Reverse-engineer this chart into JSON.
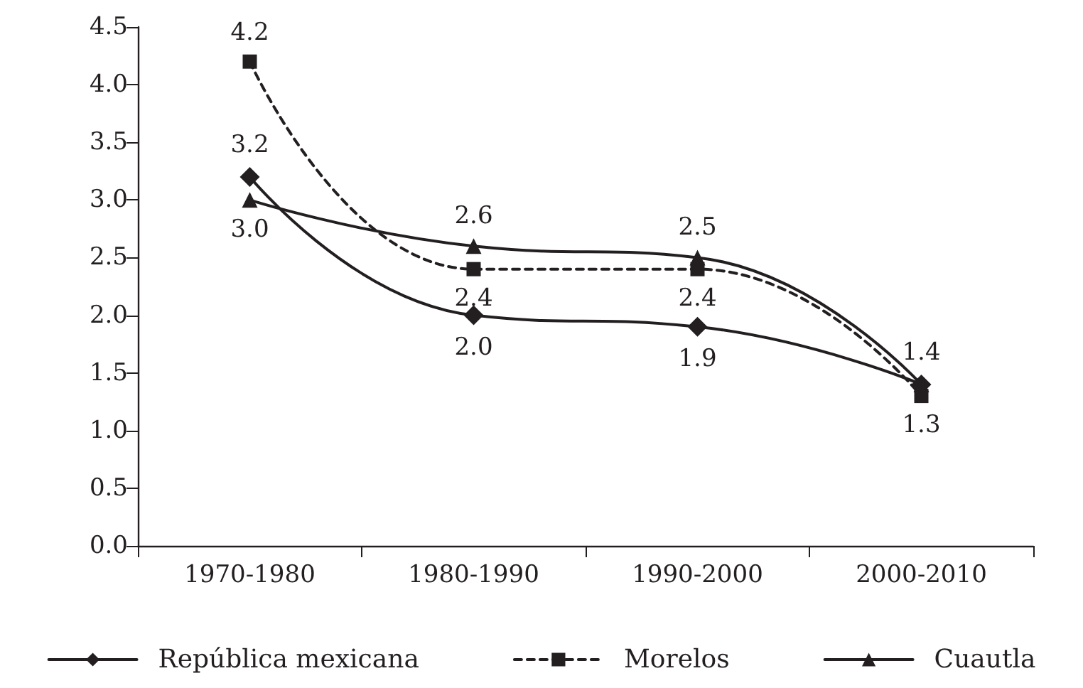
{
  "chart_data": {
    "type": "line",
    "categories": [
      "1970-1980",
      "1980-1990",
      "1990-2000",
      "2000-2010"
    ],
    "series": [
      {
        "name": "República mexicana",
        "color": "#231f20",
        "marker": "diamond",
        "line_style": "solid",
        "values": [
          3.2,
          2.0,
          1.9,
          1.4
        ],
        "value_labels": [
          "3.2",
          "2.0",
          "1.9",
          "1.4"
        ]
      },
      {
        "name": "Morelos",
        "color": "#231f20",
        "marker": "square",
        "line_style": "dashed",
        "values": [
          4.2,
          2.4,
          2.4,
          1.3
        ],
        "value_labels": [
          "4.2",
          "2.4",
          "2.4",
          "1.3"
        ]
      },
      {
        "name": "Cuautla",
        "color": "#231f20",
        "marker": "triangle",
        "line_style": "solid",
        "values": [
          3.0,
          2.6,
          2.5,
          1.4
        ],
        "value_labels": [
          "3.0",
          "2.6",
          "2.5",
          null
        ]
      }
    ],
    "ylim": [
      0,
      4.5
    ],
    "yticks": [
      {
        "value": 0,
        "label": "0.0"
      },
      0.5,
      {
        "value": 1,
        "label": "1.0"
      },
      1.5,
      {
        "value": 2,
        "label": "2.0"
      },
      2.5,
      {
        "value": 3,
        "label": "3.0"
      },
      3.5,
      {
        "value": 4,
        "label": "4.0"
      },
      4.5
    ],
    "grid": false,
    "legend": "bottom"
  }
}
